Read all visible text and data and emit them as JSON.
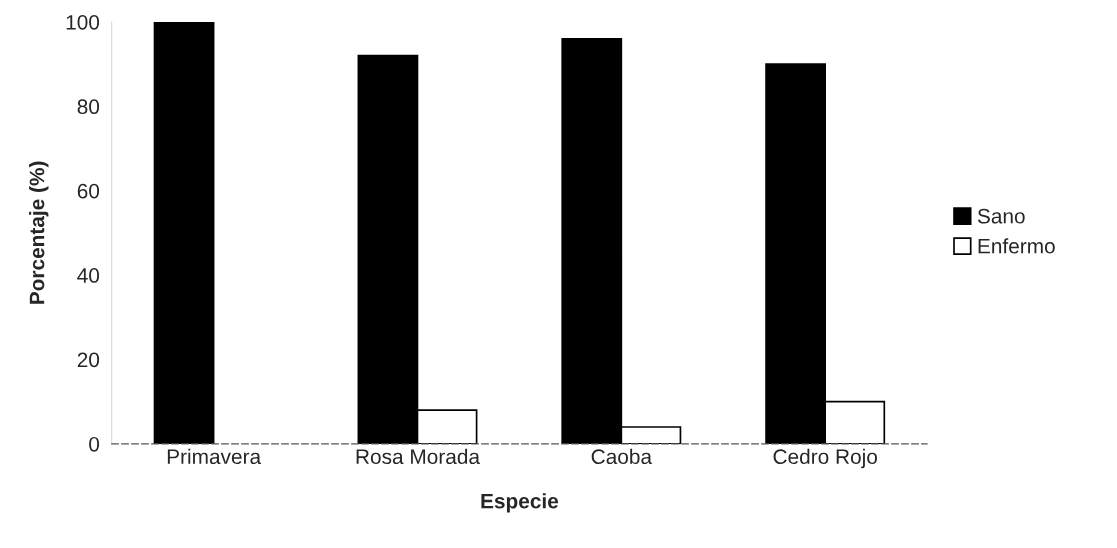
{
  "chart_data": {
    "type": "bar",
    "xlabel": "Especie",
    "ylabel": "Porcentaje (%)",
    "categories": [
      "Primavera",
      "Rosa Morada",
      "Caoba",
      "Cedro Rojo"
    ],
    "series": [
      {
        "name": "Sano",
        "color": "#000000",
        "values": [
          100,
          92,
          96,
          90
        ]
      },
      {
        "name": "Enfermo",
        "color": "#ffffff",
        "values": [
          0,
          8,
          4,
          10
        ]
      }
    ],
    "ylim": [
      0,
      100
    ],
    "yticks": [
      0,
      20,
      40,
      60,
      80,
      100
    ],
    "grid": false,
    "legend": "right"
  }
}
